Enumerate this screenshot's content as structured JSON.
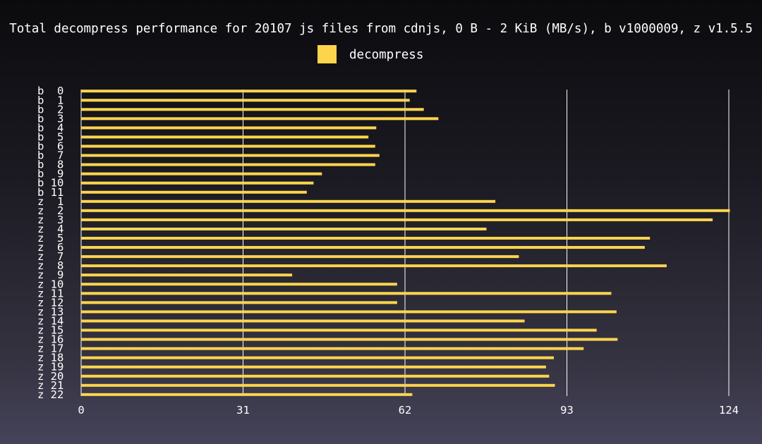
{
  "chart_data": {
    "type": "bar",
    "orientation": "horizontal",
    "title": "Total decompress performance for 20107 js files from cdnjs, 0 B - 2 KiB (MB/s), b v1000009, z v1.5.5",
    "xlabel": "",
    "ylabel": "",
    "xlim": [
      0,
      124
    ],
    "xticks": [
      0,
      31,
      62,
      93,
      124
    ],
    "grid": true,
    "legend_position": "top-center",
    "colors": {
      "bar": "#fdd54d",
      "grid": "#ffffff",
      "text": "#ffffff"
    },
    "categories": [
      "b  0",
      "b  1",
      "b  2",
      "b  3",
      "b  4",
      "b  5",
      "b  6",
      "b  7",
      "b  8",
      "b  9",
      "b 10",
      "b 11",
      "z  1",
      "z  2",
      "z  3",
      "z  4",
      "z  5",
      "z  6",
      "z  7",
      "z  8",
      "z  9",
      "z 10",
      "z 11",
      "z 12",
      "z 13",
      "z 14",
      "z 15",
      "z 16",
      "z 17",
      "z 18",
      "z 19",
      "z 20",
      "z 21",
      "z 22"
    ],
    "series": [
      {
        "name": "decompress",
        "values": [
          64.2,
          62.9,
          65.6,
          68.4,
          56.5,
          55.0,
          56.3,
          57.1,
          56.3,
          46.1,
          44.5,
          43.2,
          79.3,
          124.2,
          120.9,
          77.6,
          108.9,
          107.9,
          83.8,
          112.1,
          40.4,
          60.5,
          101.5,
          60.5,
          102.5,
          84.9,
          98.7,
          102.7,
          96.2,
          90.5,
          89.0,
          89.6,
          90.7,
          63.4
        ]
      }
    ]
  }
}
